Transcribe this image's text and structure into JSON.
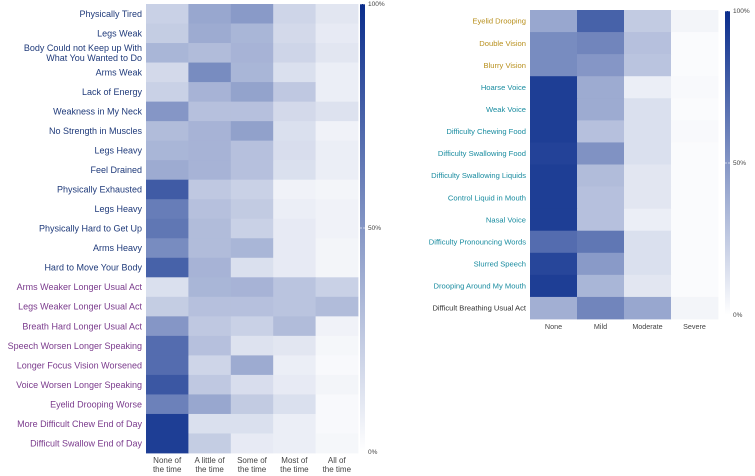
{
  "colors": {
    "low": "#ffffff",
    "high": "#0a2d8c",
    "grid": "#ebebeb",
    "tick_text": "#444444",
    "label_physical": "#1f3a7a",
    "label_worse": "#7a3a8c",
    "label_gold": "#b8901e",
    "label_teal": "#1a8ca0",
    "label_dark": "#333333"
  },
  "chart_data": [
    {
      "type": "heatmap",
      "title": "",
      "xlabel": "",
      "ylabel": "",
      "x_categories": [
        [
          "None of",
          "the time"
        ],
        [
          "A little of",
          "the time"
        ],
        [
          "Some of",
          "the time"
        ],
        [
          "Most of",
          "the time"
        ],
        [
          "All of",
          "the time"
        ]
      ],
      "rows": [
        {
          "label": "Physically Tired",
          "group": "physical",
          "values": [
            22,
            42,
            48,
            20,
            12
          ]
        },
        {
          "label": "Legs Weak",
          "group": "physical",
          "values": [
            24,
            40,
            35,
            18,
            10
          ]
        },
        {
          "label": [
            "Body Could not Keep up With",
            "What You Wanted to Do"
          ],
          "group": "physical",
          "values": [
            35,
            32,
            36,
            20,
            12
          ]
        },
        {
          "label": "Arms Weak",
          "group": "physical",
          "values": [
            18,
            55,
            35,
            15,
            8
          ]
        },
        {
          "label": "Lack of Energy",
          "group": "physical",
          "values": [
            22,
            36,
            44,
            26,
            8
          ]
        },
        {
          "label": "Weakness in My Neck",
          "group": "physical",
          "values": [
            50,
            30,
            30,
            18,
            14
          ]
        },
        {
          "label": "No Strength in Muscles",
          "group": "physical",
          "values": [
            32,
            36,
            45,
            15,
            6
          ]
        },
        {
          "label": "Legs Heavy",
          "group": "physical",
          "values": [
            35,
            36,
            30,
            16,
            8
          ]
        },
        {
          "label": "Feel Drained",
          "group": "physical",
          "values": [
            40,
            36,
            30,
            15,
            8
          ]
        },
        {
          "label": "Physically Exhausted",
          "group": "physical",
          "values": [
            78,
            26,
            22,
            6,
            5
          ]
        },
        {
          "label": "Legs Heavy",
          "group": "physical",
          "values": [
            62,
            30,
            25,
            8,
            6
          ]
        },
        {
          "label": "Physically Hard to Get Up",
          "group": "physical",
          "values": [
            65,
            32,
            22,
            10,
            6
          ]
        },
        {
          "label": "Arms Heavy",
          "group": "physical",
          "values": [
            55,
            32,
            35,
            10,
            5
          ]
        },
        {
          "label": "Hard to Move Your Body",
          "group": "physical",
          "values": [
            75,
            36,
            15,
            10,
            5
          ]
        },
        {
          "label": "Arms Weaker Longer Usual Act",
          "group": "worse",
          "values": [
            15,
            35,
            36,
            28,
            22
          ]
        },
        {
          "label": "Legs Weaker Longer Usual Act",
          "group": "worse",
          "values": [
            24,
            30,
            30,
            28,
            32
          ]
        },
        {
          "label": "Breath Hard Longer Usual Act",
          "group": "worse",
          "values": [
            50,
            26,
            22,
            32,
            6
          ]
        },
        {
          "label": "Speech Worsen Longer Speaking",
          "group": "worse",
          "values": [
            70,
            30,
            14,
            12,
            4
          ]
        },
        {
          "label": "Longer Focus Vision Worsened",
          "group": "worse",
          "values": [
            70,
            20,
            40,
            8,
            3
          ]
        },
        {
          "label": "Voice Worsen Longer Speaking",
          "group": "worse",
          "values": [
            80,
            26,
            16,
            10,
            5
          ]
        },
        {
          "label": "Eyelid Drooping Worse",
          "group": "worse",
          "values": [
            60,
            42,
            25,
            15,
            3
          ]
        },
        {
          "label": "More Difficult Chew End of Day",
          "group": "worse",
          "values": [
            92,
            15,
            15,
            8,
            3
          ]
        },
        {
          "label": "Difficult Swallow End of Day",
          "group": "worse",
          "values": [
            92,
            24,
            10,
            8,
            4
          ]
        }
      ],
      "legend": {
        "ticks": [
          "100%",
          "50%",
          "0%"
        ],
        "range": [
          0,
          100
        ],
        "position": "right"
      }
    },
    {
      "type": "heatmap",
      "title": "",
      "xlabel": "",
      "ylabel": "",
      "x_categories": [
        [
          "None"
        ],
        [
          "Mild"
        ],
        [
          "Moderate"
        ],
        [
          "Severe"
        ]
      ],
      "rows": [
        {
          "label": "Eyelid Drooping",
          "group": "gold",
          "values": [
            42,
            75,
            25,
            5
          ]
        },
        {
          "label": "Double Vision",
          "group": "gold",
          "values": [
            55,
            58,
            30,
            2
          ]
        },
        {
          "label": "Blurry Vision",
          "group": "gold",
          "values": [
            55,
            50,
            28,
            2
          ]
        },
        {
          "label": "Hoarse Voice",
          "group": "teal",
          "values": [
            92,
            40,
            8,
            3
          ]
        },
        {
          "label": "Weak Voice",
          "group": "teal",
          "values": [
            92,
            40,
            15,
            2
          ]
        },
        {
          "label": "Difficulty Chewing Food",
          "group": "teal",
          "values": [
            92,
            30,
            15,
            3
          ]
        },
        {
          "label": "Difficulty Swallowing Food",
          "group": "teal",
          "values": [
            90,
            52,
            15,
            2
          ]
        },
        {
          "label": "Difficulty Swallowing Liquids",
          "group": "teal",
          "values": [
            92,
            32,
            12,
            2
          ]
        },
        {
          "label": "Control Liquid in Mouth",
          "group": "teal",
          "values": [
            92,
            30,
            12,
            2
          ]
        },
        {
          "label": "Nasal Voice",
          "group": "teal",
          "values": [
            92,
            30,
            8,
            2
          ]
        },
        {
          "label": "Difficulty Pronouncing Words",
          "group": "teal",
          "values": [
            70,
            65,
            15,
            2
          ]
        },
        {
          "label": "Slurred Speech",
          "group": "teal",
          "values": [
            88,
            48,
            15,
            2
          ]
        },
        {
          "label": "Drooping Around My Mouth",
          "group": "teal",
          "values": [
            92,
            35,
            12,
            2
          ]
        },
        {
          "label": "Difficult Breathing Usual Act",
          "group": "dark",
          "values": [
            38,
            58,
            42,
            5
          ]
        }
      ],
      "legend": {
        "ticks": [
          "100%",
          "50%",
          "0%"
        ],
        "range": [
          0,
          100
        ],
        "position": "right"
      }
    }
  ]
}
